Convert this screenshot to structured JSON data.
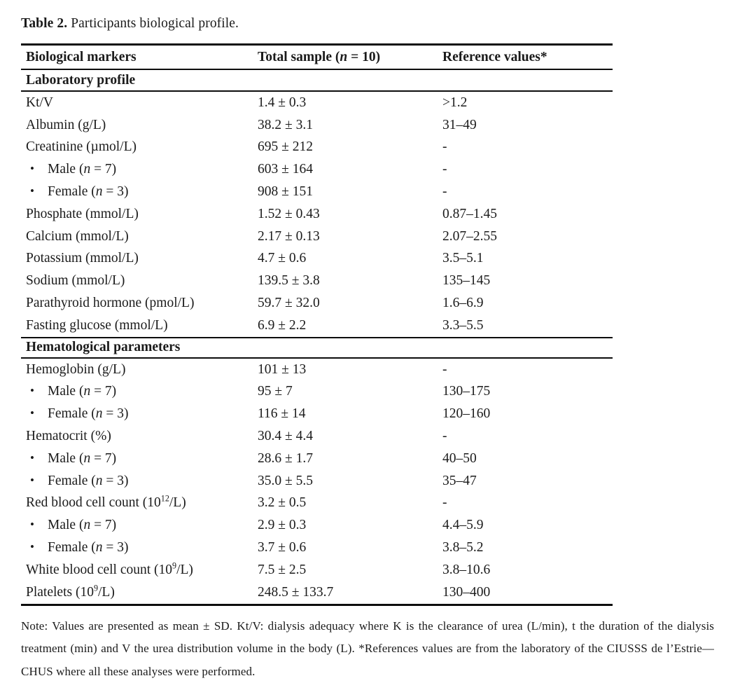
{
  "caption": {
    "label": "Table 2.",
    "text": "Participants biological profile."
  },
  "table": {
    "columns": [
      "Biological markers",
      "Total sample (n = 10)",
      "Reference values*"
    ],
    "sections": [
      {
        "header": "Laboratory profile",
        "rows": [
          {
            "label": "Kt/V",
            "bullet": false,
            "value": "1.4 ± 0.3",
            "reference": ">1.2"
          },
          {
            "label": "Albumin (g/L)",
            "bullet": false,
            "value": "38.2 ± 3.1",
            "reference": "31–49"
          },
          {
            "label": "Creatinine (µmol/L)",
            "bullet": false,
            "value": "695 ± 212",
            "reference": "-"
          },
          {
            "label": "Male (n = 7)",
            "bullet": true,
            "value": "603 ± 164",
            "reference": "-"
          },
          {
            "label": "Female (n = 3)",
            "bullet": true,
            "value": "908 ± 151",
            "reference": "-"
          },
          {
            "label": "Phosphate (mmol/L)",
            "bullet": false,
            "value": "1.52 ± 0.43",
            "reference": "0.87–1.45"
          },
          {
            "label": "Calcium (mmol/L)",
            "bullet": false,
            "value": "2.17 ± 0.13",
            "reference": "2.07–2.55"
          },
          {
            "label": "Potassium (mmol/L)",
            "bullet": false,
            "value": "4.7 ± 0.6",
            "reference": "3.5–5.1"
          },
          {
            "label": "Sodium (mmol/L)",
            "bullet": false,
            "value": "139.5 ± 3.8",
            "reference": "135–145"
          },
          {
            "label": "Parathyroid hormone (pmol/L)",
            "bullet": false,
            "value": "59.7 ± 32.0",
            "reference": "1.6–6.9"
          },
          {
            "label": "Fasting glucose (mmol/L)",
            "bullet": false,
            "value": "6.9 ± 2.2",
            "reference": "3.3–5.5"
          }
        ]
      },
      {
        "header": "Hematological parameters",
        "rows": [
          {
            "label": "Hemoglobin (g/L)",
            "bullet": false,
            "value": "101 ± 13",
            "reference": "-"
          },
          {
            "label": "Male (n = 7)",
            "bullet": true,
            "value": "95 ± 7",
            "reference": "130–175"
          },
          {
            "label": "Female (n = 3)",
            "bullet": true,
            "value": "116 ± 14",
            "reference": "120–160"
          },
          {
            "label": "Hematocrit (%)",
            "bullet": false,
            "value": "30.4 ± 4.4",
            "reference": "-"
          },
          {
            "label": "Male (n = 7)",
            "bullet": true,
            "value": "28.6 ± 1.7",
            "reference": "40–50"
          },
          {
            "label": "Female (n = 3)",
            "bullet": true,
            "value": "35.0 ± 5.5",
            "reference": "35–47"
          },
          {
            "label": "Red blood cell count (10^12/L)",
            "bullet": false,
            "value": "3.2 ± 0.5",
            "reference": "-"
          },
          {
            "label": "Male (n = 7)",
            "bullet": true,
            "value": "2.9 ± 0.3",
            "reference": "4.4–5.9"
          },
          {
            "label": "Female (n = 3)",
            "bullet": true,
            "value": "3.7 ± 0.6",
            "reference": "3.8–5.2"
          },
          {
            "label": "White blood cell count (10^9/L)",
            "bullet": false,
            "value": "7.5 ± 2.5",
            "reference": "3.8–10.6"
          },
          {
            "label": "Platelets (10^9/L)",
            "bullet": false,
            "value": "248.5 ± 133.7",
            "reference": "130–400"
          }
        ]
      }
    ]
  },
  "note": "Note: Values are presented as mean ± SD. Kt/V: dialysis adequacy where K is the clearance of urea (L/min), t the duration of the dialysis treatment (min) and V the urea distribution volume in the body (L). *References values are from the laboratory of the CIUSSS de l’Estrie—CHUS where all these analyses were performed."
}
